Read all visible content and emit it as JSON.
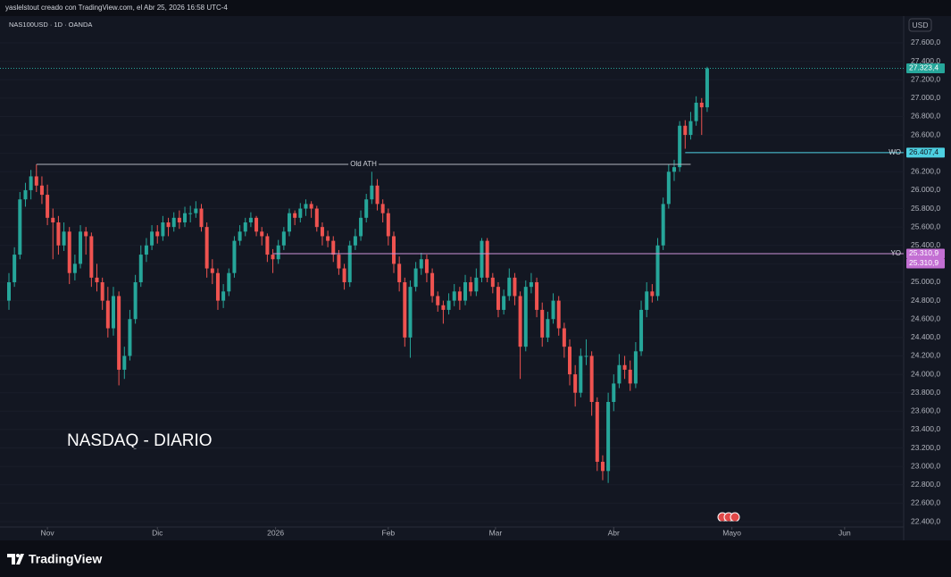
{
  "header": {
    "attribution": "yaslelstout creado con TradingView.com, el Abr 25, 2026 16:58 UTC-4",
    "brand": "TradingView"
  },
  "chart_data": {
    "type": "candlestick",
    "title": "NASDAQ - DIARIO",
    "symbol": "NAS100USD · 1D · OANDA",
    "currency": "USD",
    "up_color": "#26a69a",
    "down_color": "#ef5350",
    "ohlc": [
      [
        24800,
        25100,
        24700,
        25000
      ],
      [
        25000,
        25380,
        24950,
        25300
      ],
      [
        25300,
        25980,
        25250,
        25900
      ],
      [
        25900,
        26080,
        25820,
        26000
      ],
      [
        26000,
        26220,
        25900,
        26150
      ],
      [
        26150,
        26280,
        25980,
        26050
      ],
      [
        26050,
        26150,
        25850,
        25950
      ],
      [
        25950,
        26060,
        25620,
        25700
      ],
      [
        25700,
        25800,
        25250,
        25650
      ],
      [
        25650,
        25720,
        25300,
        25400
      ],
      [
        25400,
        25650,
        25340,
        25550
      ],
      [
        25550,
        25600,
        24980,
        25100
      ],
      [
        25100,
        25300,
        25020,
        25200
      ],
      [
        25200,
        25620,
        25150,
        25550
      ],
      [
        25550,
        25600,
        25300,
        25500
      ],
      [
        25500,
        25540,
        24950,
        25050
      ],
      [
        25050,
        25200,
        24900,
        25000
      ],
      [
        25000,
        25050,
        24700,
        24800
      ],
      [
        24800,
        24950,
        24400,
        24500
      ],
      [
        24500,
        24950,
        24420,
        24850
      ],
      [
        24850,
        24900,
        23880,
        24050
      ],
      [
        24050,
        24300,
        23950,
        24200
      ],
      [
        24200,
        24700,
        24150,
        24600
      ],
      [
        24600,
        25080,
        24550,
        25000
      ],
      [
        25000,
        25400,
        24950,
        25300
      ],
      [
        25300,
        25480,
        25220,
        25400
      ],
      [
        25400,
        25620,
        25350,
        25550
      ],
      [
        25550,
        25620,
        25420,
        25500
      ],
      [
        25500,
        25720,
        25450,
        25650
      ],
      [
        25650,
        25700,
        25500,
        25600
      ],
      [
        25600,
        25760,
        25550,
        25700
      ],
      [
        25700,
        25780,
        25580,
        25650
      ],
      [
        25650,
        25820,
        25600,
        25750
      ],
      [
        25750,
        25830,
        25650,
        25750
      ],
      [
        25750,
        25880,
        25700,
        25800
      ],
      [
        25800,
        25850,
        25550,
        25600
      ],
      [
        25600,
        25650,
        25050,
        25150
      ],
      [
        25150,
        25250,
        24980,
        25100
      ],
      [
        25100,
        25150,
        24700,
        24800
      ],
      [
        24800,
        24980,
        24720,
        24900
      ],
      [
        24900,
        25150,
        24850,
        25100
      ],
      [
        25100,
        25500,
        25050,
        25450
      ],
      [
        25450,
        25620,
        25400,
        25550
      ],
      [
        25550,
        25700,
        25500,
        25650
      ],
      [
        25650,
        25760,
        25600,
        25700
      ],
      [
        25700,
        25720,
        25500,
        25550
      ],
      [
        25550,
        25600,
        25400,
        25500
      ],
      [
        25500,
        25530,
        25220,
        25300
      ],
      [
        25300,
        25360,
        25100,
        25250
      ],
      [
        25250,
        25460,
        25200,
        25400
      ],
      [
        25400,
        25600,
        25350,
        25550
      ],
      [
        25550,
        25800,
        25500,
        25750
      ],
      [
        25750,
        25780,
        25620,
        25700
      ],
      [
        25700,
        25860,
        25650,
        25800
      ],
      [
        25800,
        25900,
        25720,
        25850
      ],
      [
        25850,
        25880,
        25700,
        25800
      ],
      [
        25800,
        25830,
        25550,
        25600
      ],
      [
        25600,
        25650,
        25400,
        25500
      ],
      [
        25500,
        25560,
        25380,
        25450
      ],
      [
        25450,
        25500,
        25220,
        25300
      ],
      [
        25300,
        25350,
        25080,
        25150
      ],
      [
        25150,
        25200,
        24920,
        25000
      ],
      [
        25000,
        25450,
        24950,
        25400
      ],
      [
        25400,
        25580,
        25350,
        25500
      ],
      [
        25500,
        25780,
        25450,
        25700
      ],
      [
        25700,
        25960,
        25650,
        25900
      ],
      [
        25900,
        26200,
        25850,
        26050
      ],
      [
        26050,
        26120,
        25780,
        25850
      ],
      [
        25850,
        25900,
        25650,
        25750
      ],
      [
        25750,
        25800,
        25400,
        25500
      ],
      [
        25500,
        25550,
        25100,
        25200
      ],
      [
        25200,
        25280,
        24900,
        25000
      ],
      [
        25000,
        25050,
        24300,
        24400
      ],
      [
        24400,
        25020,
        24180,
        24950
      ],
      [
        24950,
        25220,
        24900,
        25150
      ],
      [
        25150,
        25320,
        25080,
        25250
      ],
      [
        25250,
        25300,
        25000,
        25100
      ],
      [
        25100,
        25150,
        24780,
        24850
      ],
      [
        24850,
        24900,
        24680,
        24750
      ],
      [
        24750,
        24800,
        24550,
        24700
      ],
      [
        24700,
        24880,
        24650,
        24800
      ],
      [
        24800,
        24980,
        24740,
        24900
      ],
      [
        24900,
        24950,
        24700,
        24800
      ],
      [
        24800,
        25080,
        24750,
        25000
      ],
      [
        25000,
        25060,
        24850,
        24900
      ],
      [
        24900,
        25150,
        24850,
        25050
      ],
      [
        25050,
        25480,
        25000,
        25450
      ],
      [
        25450,
        25480,
        25000,
        25050
      ],
      [
        25050,
        25100,
        24880,
        24950
      ],
      [
        24950,
        25000,
        24620,
        24700
      ],
      [
        24700,
        24920,
        24650,
        24850
      ],
      [
        24850,
        25150,
        24800,
        25050
      ],
      [
        25050,
        25100,
        24750,
        24850
      ],
      [
        24850,
        24900,
        23950,
        24300
      ],
      [
        24300,
        25020,
        24250,
        24950
      ],
      [
        24950,
        25100,
        24880,
        25000
      ],
      [
        25000,
        25050,
        24620,
        24700
      ],
      [
        24700,
        24780,
        24300,
        24400
      ],
      [
        24400,
        24680,
        24350,
        24600
      ],
      [
        24600,
        24880,
        24550,
        24800
      ],
      [
        24800,
        24850,
        24420,
        24500
      ],
      [
        24500,
        24560,
        24180,
        24300
      ],
      [
        24300,
        24380,
        23880,
        24000
      ],
      [
        24000,
        24100,
        23650,
        23800
      ],
      [
        23800,
        24280,
        23750,
        24200
      ],
      [
        24200,
        24380,
        24100,
        24200
      ],
      [
        24200,
        24250,
        23550,
        23700
      ],
      [
        23700,
        23750,
        22950,
        23050
      ],
      [
        23050,
        23120,
        22850,
        22950
      ],
      [
        22950,
        23800,
        22820,
        23700
      ],
      [
        23700,
        24000,
        23600,
        23900
      ],
      [
        23900,
        24220,
        23850,
        24100
      ],
      [
        24100,
        24200,
        23950,
        24050
      ],
      [
        24050,
        24150,
        23820,
        23900
      ],
      [
        23900,
        24350,
        23850,
        24250
      ],
      [
        24250,
        24800,
        24200,
        24700
      ],
      [
        24700,
        25000,
        24620,
        24900
      ],
      [
        24900,
        24980,
        24780,
        24850
      ],
      [
        24850,
        25480,
        24800,
        25400
      ],
      [
        25400,
        25920,
        25350,
        25850
      ],
      [
        25850,
        26280,
        25800,
        26200
      ],
      [
        26200,
        26330,
        26100,
        26250
      ],
      [
        26250,
        26750,
        26200,
        26700
      ],
      [
        26700,
        26760,
        26450,
        26600
      ],
      [
        26600,
        26850,
        26550,
        26750
      ],
      [
        26750,
        27020,
        26700,
        26950
      ],
      [
        26950,
        27000,
        26600,
        26900
      ],
      [
        26900,
        27340,
        26850,
        27323.4
      ]
    ],
    "last_price_label": "27.323,4",
    "ylim": [
      22274,
      27920
    ],
    "yticks": [
      {
        "value": 22400,
        "label": "22.400,0"
      },
      {
        "value": 22600,
        "label": "22.600,0"
      },
      {
        "value": 22800,
        "label": "22.800,0"
      },
      {
        "value": 23000,
        "label": "23.000,0"
      },
      {
        "value": 23200,
        "label": "23.200,0"
      },
      {
        "value": 23400,
        "label": "23.400,0"
      },
      {
        "value": 23600,
        "label": "23.600,0"
      },
      {
        "value": 23800,
        "label": "23.800,0"
      },
      {
        "value": 24000,
        "label": "24.000,0"
      },
      {
        "value": 24200,
        "label": "24.200,0"
      },
      {
        "value": 24400,
        "label": "24.400,0"
      },
      {
        "value": 24600,
        "label": "24.600,0"
      },
      {
        "value": 24800,
        "label": "24.800,0"
      },
      {
        "value": 25000,
        "label": "25.000,0"
      },
      {
        "value": 25200,
        "label": "25.200,0"
      },
      {
        "value": 25400,
        "label": "25.400,0"
      },
      {
        "value": 25600,
        "label": "25.600,0"
      },
      {
        "value": 25800,
        "label": "25.800,0"
      },
      {
        "value": 26000,
        "label": "26.000,0"
      },
      {
        "value": 26200,
        "label": "26.200,0"
      },
      {
        "value": 26400,
        "label": "26.400,0"
      },
      {
        "value": 26600,
        "label": "26.600,0"
      },
      {
        "value": 26800,
        "label": "26.800,0"
      },
      {
        "value": 27000,
        "label": "27.000,0"
      },
      {
        "value": 27200,
        "label": "27.200,0"
      },
      {
        "value": 27400,
        "label": "27.400,0"
      },
      {
        "value": 27600,
        "label": "27.600,0"
      }
    ],
    "xticks": [
      {
        "value": 7,
        "label": "Nov"
      },
      {
        "value": 27,
        "label": "Dic"
      },
      {
        "value": 48.5,
        "label": "2026"
      },
      {
        "value": 69,
        "label": "Feb"
      },
      {
        "value": 88.5,
        "label": "Mar"
      },
      {
        "value": 110,
        "label": "Abr"
      },
      {
        "value": 131.5,
        "label": "Mayo"
      },
      {
        "value": 152,
        "label": "Jun"
      }
    ],
    "levels": [
      {
        "name": "Old ATH",
        "value": 26280,
        "color": "#b2b5be"
      },
      {
        "name": "WO",
        "value": 26407.4,
        "value_label": "26.407,4",
        "color": "#4dd0e1"
      },
      {
        "name": "YO",
        "value": 25310.9,
        "value_label": "25.310,9",
        "color": "#ce93d8"
      }
    ]
  }
}
